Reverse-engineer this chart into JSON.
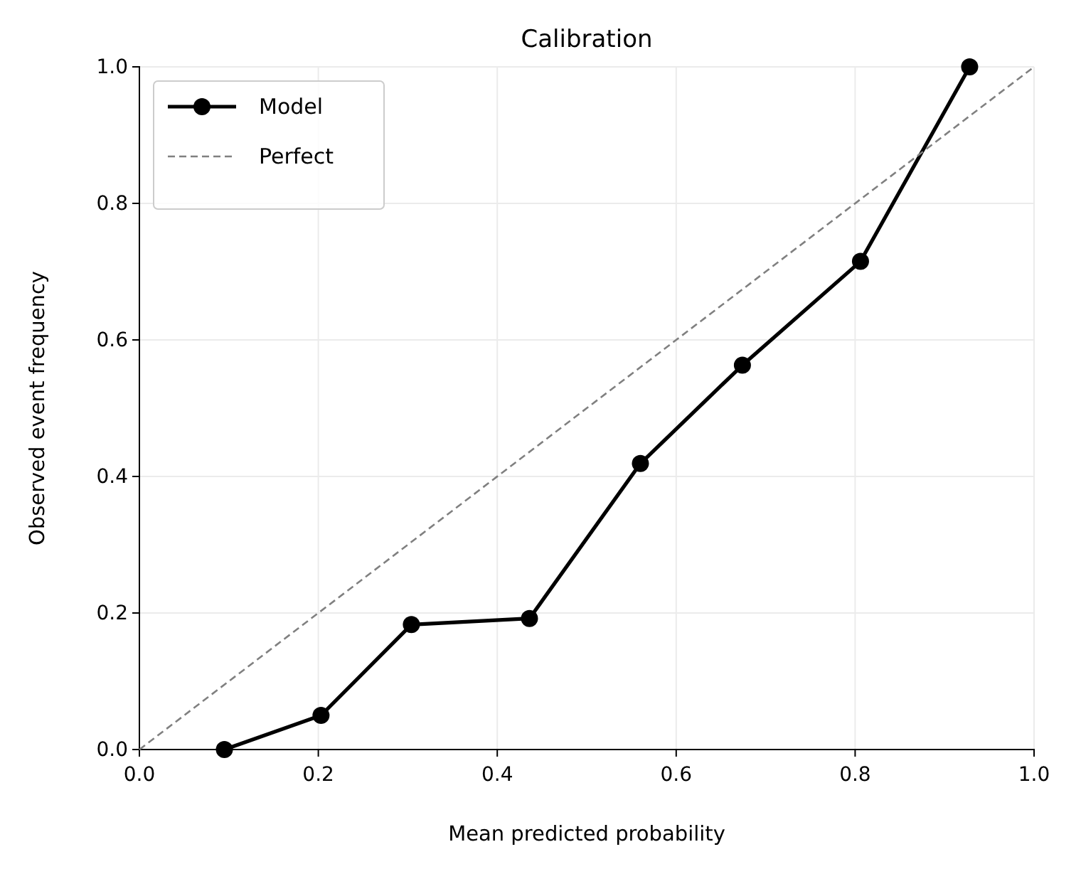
{
  "chart_data": {
    "type": "line",
    "title": "Calibration",
    "xlabel": "Mean predicted probability",
    "ylabel": "Observed event frequency",
    "xlim": [
      0,
      1
    ],
    "ylim": [
      0,
      1
    ],
    "xticks": [
      {
        "value": 0,
        "label": "0.0"
      },
      {
        "value": 0.2,
        "label": "0.2"
      },
      {
        "value": 0.4,
        "label": "0.4"
      },
      {
        "value": 0.6,
        "label": "0.6"
      },
      {
        "value": 0.8,
        "label": "0.8"
      },
      {
        "value": 1,
        "label": "1.0"
      }
    ],
    "yticks": [
      {
        "value": 0,
        "label": "0.0"
      },
      {
        "value": 0.2,
        "label": "0.2"
      },
      {
        "value": 0.4,
        "label": "0.4"
      },
      {
        "value": 0.6,
        "label": "0.6"
      },
      {
        "value": 0.8,
        "label": "0.8"
      },
      {
        "value": 1,
        "label": "1.0"
      }
    ],
    "grid": true,
    "legend": "top left",
    "series": [
      {
        "name": "Model",
        "color": "#000000",
        "marker": "circle",
        "line_style": "solid",
        "x": [
          0.095,
          0.203,
          0.304,
          0.436,
          0.56,
          0.674,
          0.806,
          0.928
        ],
        "values": [
          0,
          0.05,
          0.183,
          0.192,
          0.419,
          0.563,
          0.715,
          1
        ]
      },
      {
        "name": "Perfect",
        "color": "#808080",
        "marker": "none",
        "line_style": "dashed",
        "x": [
          0,
          1
        ],
        "values": [
          0,
          1
        ]
      }
    ]
  }
}
